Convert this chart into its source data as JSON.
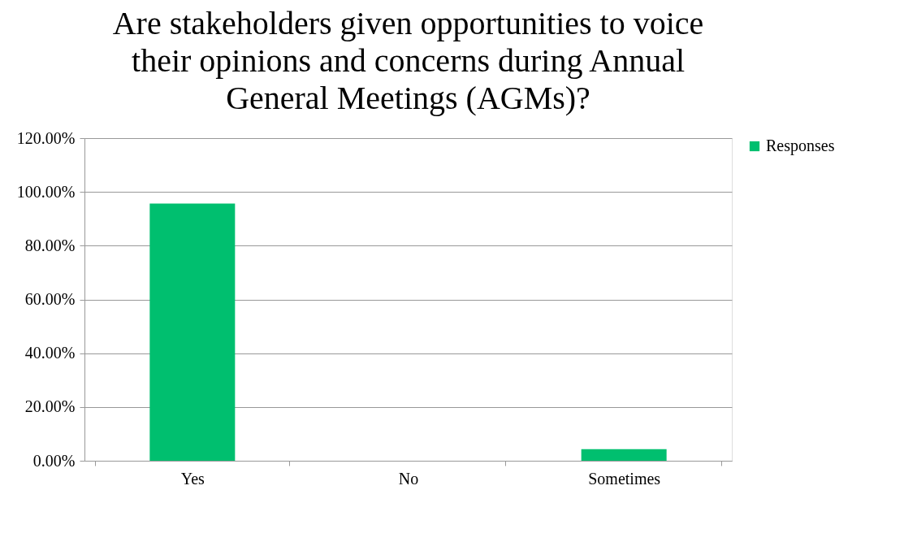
{
  "chart_data": {
    "type": "bar",
    "title": "Are stakeholders given opportunities to voice their opinions and concerns during Annual General Meetings (AGMs)?",
    "categories": [
      "Yes",
      "No",
      "Sometimes"
    ],
    "series": [
      {
        "name": "Responses",
        "color": "#00bf6f",
        "values": [
          95.7,
          0,
          4.3
        ]
      }
    ],
    "ylim": [
      0,
      120
    ],
    "yticks": [
      {
        "value": 0,
        "label": "0.00%"
      },
      {
        "value": 20,
        "label": "20.00%"
      },
      {
        "value": 40,
        "label": "40.00%"
      },
      {
        "value": 60,
        "label": "60.00%"
      },
      {
        "value": 80,
        "label": "80.00%"
      },
      {
        "value": 100,
        "label": "100.00%"
      },
      {
        "value": 120,
        "label": "120.00%"
      }
    ],
    "grid": "y",
    "legend": "right"
  }
}
